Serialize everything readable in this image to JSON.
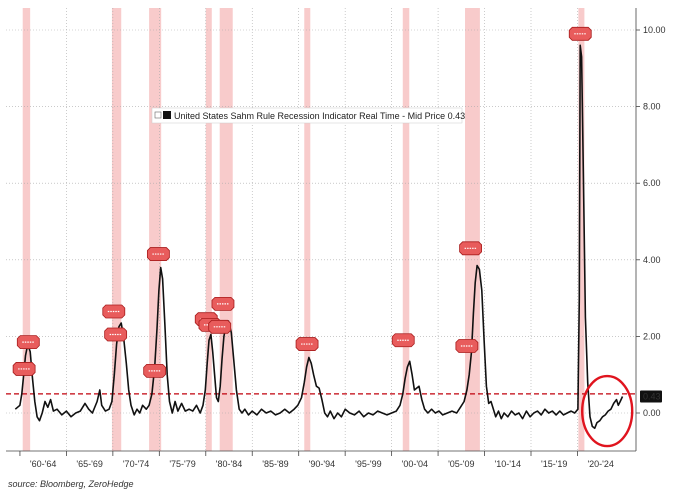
{
  "chart_data": {
    "type": "line",
    "legend_label": "United States Sahm Rule Recession Indicator Real Time - Mid Price 0.43",
    "legend_placement": "top-center",
    "grid": true,
    "x_range": [
      1960,
      2026
    ],
    "ylim": [
      -1,
      10.4
    ],
    "y_ticks": [
      0,
      2,
      4,
      6,
      8,
      10
    ],
    "y_tick_labels": [
      "0.00",
      "2.00",
      "4.00",
      "6.00",
      "8.00",
      "10.00"
    ],
    "x_tick_labels": [
      "'60-'64",
      "'65-'69",
      "'70-'74",
      "'75-'79",
      "'80-'84",
      "'85-'89",
      "'90-'94",
      "'95-'99",
      "'00-'04",
      "'05-'09",
      "'10-'14",
      "'15-'19",
      "'20-'24"
    ],
    "x_tick_positions": [
      1960,
      1965,
      1970,
      1975,
      1980,
      1985,
      1990,
      1995,
      2000,
      2005,
      2010,
      2015,
      2020
    ],
    "x_gridlines": [
      1965,
      1970,
      1975,
      1980,
      1985,
      1990,
      1995,
      2000,
      2005,
      2010,
      2015,
      2020
    ],
    "threshold": 0.5,
    "last_value": 0.43,
    "last_value_label": "0.43",
    "recessions": [
      [
        1960.3,
        1961.1
      ],
      [
        1969.9,
        1970.9
      ],
      [
        1973.9,
        1975.2
      ],
      [
        1980.0,
        1980.5
      ],
      [
        1981.5,
        1982.9
      ],
      [
        1990.6,
        1991.2
      ],
      [
        2001.2,
        2001.9
      ],
      [
        2007.9,
        2009.5
      ],
      [
        2020.1,
        2020.4
      ]
    ],
    "series": [
      {
        "values": [
          [
            1959.5,
            0.1
          ],
          [
            1960.0,
            0.2
          ],
          [
            1960.2,
            0.5
          ],
          [
            1960.4,
            1.0
          ],
          [
            1960.6,
            1.5
          ],
          [
            1960.85,
            1.8
          ],
          [
            1961.1,
            1.6
          ],
          [
            1961.35,
            0.9
          ],
          [
            1961.6,
            0.3
          ],
          [
            1961.85,
            -0.1
          ],
          [
            1962.1,
            -0.2
          ],
          [
            1962.4,
            0.0
          ],
          [
            1962.7,
            0.3
          ],
          [
            1963.0,
            0.15
          ],
          [
            1963.3,
            0.35
          ],
          [
            1963.6,
            0.05
          ],
          [
            1964.0,
            0.1
          ],
          [
            1964.5,
            -0.05
          ],
          [
            1965.0,
            0.05
          ],
          [
            1965.5,
            -0.1
          ],
          [
            1966.0,
            0.0
          ],
          [
            1966.5,
            0.05
          ],
          [
            1967.0,
            0.25
          ],
          [
            1967.4,
            0.1
          ],
          [
            1967.8,
            0.0
          ],
          [
            1968.3,
            0.3
          ],
          [
            1968.6,
            0.6
          ],
          [
            1968.8,
            0.2
          ],
          [
            1969.2,
            0.05
          ],
          [
            1969.6,
            0.1
          ],
          [
            1969.9,
            0.3
          ],
          [
            1970.15,
            1.0
          ],
          [
            1970.4,
            1.8
          ],
          [
            1970.65,
            2.25
          ],
          [
            1970.9,
            2.35
          ],
          [
            1971.15,
            2.0
          ],
          [
            1971.45,
            1.3
          ],
          [
            1971.7,
            0.6
          ],
          [
            1971.95,
            0.2
          ],
          [
            1972.3,
            -0.05
          ],
          [
            1972.6,
            0.1
          ],
          [
            1972.9,
            0.0
          ],
          [
            1973.2,
            0.2
          ],
          [
            1973.6,
            0.1
          ],
          [
            1973.9,
            0.2
          ],
          [
            1974.2,
            0.5
          ],
          [
            1974.5,
            1.2
          ],
          [
            1974.75,
            2.2
          ],
          [
            1974.95,
            3.2
          ],
          [
            1975.15,
            3.8
          ],
          [
            1975.35,
            3.5
          ],
          [
            1975.6,
            2.3
          ],
          [
            1975.85,
            1.0
          ],
          [
            1976.1,
            0.3
          ],
          [
            1976.4,
            0.0
          ],
          [
            1976.7,
            0.3
          ],
          [
            1977.0,
            0.05
          ],
          [
            1977.4,
            0.25
          ],
          [
            1977.8,
            0.05
          ],
          [
            1978.2,
            0.1
          ],
          [
            1978.6,
            0.05
          ],
          [
            1979.0,
            0.2
          ],
          [
            1979.4,
            0.0
          ],
          [
            1979.7,
            0.2
          ],
          [
            1979.95,
            0.6
          ],
          [
            1980.15,
            1.3
          ],
          [
            1980.35,
            1.9
          ],
          [
            1980.55,
            2.05
          ],
          [
            1980.75,
            1.6
          ],
          [
            1980.95,
            1.0
          ],
          [
            1981.15,
            0.4
          ],
          [
            1981.35,
            0.3
          ],
          [
            1981.55,
            0.7
          ],
          [
            1981.75,
            1.4
          ],
          [
            1981.95,
            2.0
          ],
          [
            1982.2,
            2.3
          ],
          [
            1982.45,
            2.4
          ],
          [
            1982.75,
            2.1
          ],
          [
            1983.0,
            1.4
          ],
          [
            1983.3,
            0.6
          ],
          [
            1983.6,
            0.1
          ],
          [
            1983.9,
            0.0
          ],
          [
            1984.2,
            0.1
          ],
          [
            1984.6,
            -0.05
          ],
          [
            1985.0,
            0.05
          ],
          [
            1985.5,
            -0.05
          ],
          [
            1986.0,
            0.1
          ],
          [
            1986.5,
            0.0
          ],
          [
            1987.0,
            0.05
          ],
          [
            1987.5,
            -0.05
          ],
          [
            1988.0,
            0.0
          ],
          [
            1988.5,
            0.1
          ],
          [
            1989.0,
            0.0
          ],
          [
            1989.5,
            0.1
          ],
          [
            1989.9,
            0.2
          ],
          [
            1990.3,
            0.4
          ],
          [
            1990.6,
            0.8
          ],
          [
            1990.85,
            1.2
          ],
          [
            1991.1,
            1.45
          ],
          [
            1991.35,
            1.3
          ],
          [
            1991.6,
            1.0
          ],
          [
            1991.9,
            0.7
          ],
          [
            1992.2,
            0.65
          ],
          [
            1992.5,
            0.35
          ],
          [
            1992.8,
            0.0
          ],
          [
            1993.1,
            -0.1
          ],
          [
            1993.4,
            0.05
          ],
          [
            1993.8,
            -0.15
          ],
          [
            1994.2,
            0.0
          ],
          [
            1994.6,
            -0.1
          ],
          [
            1995.0,
            0.1
          ],
          [
            1995.5,
            0.0
          ],
          [
            1996.0,
            -0.05
          ],
          [
            1996.5,
            0.05
          ],
          [
            1997.0,
            -0.1
          ],
          [
            1997.5,
            0.0
          ],
          [
            1998.0,
            -0.05
          ],
          [
            1998.5,
            0.05
          ],
          [
            1999.0,
            0.0
          ],
          [
            1999.5,
            -0.05
          ],
          [
            2000.0,
            0.0
          ],
          [
            2000.5,
            0.05
          ],
          [
            2000.9,
            0.2
          ],
          [
            2001.2,
            0.5
          ],
          [
            2001.45,
            0.9
          ],
          [
            2001.7,
            1.2
          ],
          [
            2001.95,
            1.35
          ],
          [
            2002.2,
            1.0
          ],
          [
            2002.45,
            0.6
          ],
          [
            2002.7,
            0.65
          ],
          [
            2002.95,
            0.7
          ],
          [
            2003.25,
            0.35
          ],
          [
            2003.55,
            0.1
          ],
          [
            2003.9,
            0.0
          ],
          [
            2004.3,
            0.1
          ],
          [
            2004.7,
            0.0
          ],
          [
            2005.1,
            0.05
          ],
          [
            2005.5,
            -0.05
          ],
          [
            2006.0,
            0.0
          ],
          [
            2006.5,
            0.05
          ],
          [
            2007.0,
            0.0
          ],
          [
            2007.4,
            0.15
          ],
          [
            2007.8,
            0.3
          ],
          [
            2008.1,
            0.6
          ],
          [
            2008.35,
            1.0
          ],
          [
            2008.6,
            1.6
          ],
          [
            2008.8,
            2.6
          ],
          [
            2009.0,
            3.4
          ],
          [
            2009.2,
            3.85
          ],
          [
            2009.45,
            3.75
          ],
          [
            2009.7,
            3.2
          ],
          [
            2009.95,
            1.9
          ],
          [
            2010.2,
            0.7
          ],
          [
            2010.45,
            0.25
          ],
          [
            2010.7,
            0.3
          ],
          [
            2010.95,
            0.1
          ],
          [
            2011.2,
            -0.1
          ],
          [
            2011.5,
            0.05
          ],
          [
            2011.8,
            -0.15
          ],
          [
            2012.1,
            0.0
          ],
          [
            2012.5,
            -0.1
          ],
          [
            2012.9,
            0.05
          ],
          [
            2013.3,
            -0.05
          ],
          [
            2013.7,
            0.0
          ],
          [
            2014.1,
            -0.15
          ],
          [
            2014.5,
            0.05
          ],
          [
            2014.9,
            -0.1
          ],
          [
            2015.3,
            0.0
          ],
          [
            2015.7,
            0.05
          ],
          [
            2016.1,
            -0.05
          ],
          [
            2016.5,
            0.1
          ],
          [
            2016.9,
            0.0
          ],
          [
            2017.3,
            0.05
          ],
          [
            2017.7,
            -0.05
          ],
          [
            2018.1,
            0.05
          ],
          [
            2018.5,
            -0.05
          ],
          [
            2018.9,
            0.0
          ],
          [
            2019.3,
            0.05
          ],
          [
            2019.7,
            0.0
          ],
          [
            2020.05,
            0.1
          ],
          [
            2020.2,
            3.0
          ],
          [
            2020.3,
            9.6
          ],
          [
            2020.45,
            9.3
          ],
          [
            2020.65,
            6.0
          ],
          [
            2020.85,
            2.5
          ],
          [
            2021.1,
            0.8
          ],
          [
            2021.35,
            -0.1
          ],
          [
            2021.6,
            -0.35
          ],
          [
            2021.85,
            -0.4
          ],
          [
            2022.1,
            -0.25
          ],
          [
            2022.4,
            -0.2
          ],
          [
            2022.7,
            -0.1
          ],
          [
            2023.0,
            -0.05
          ],
          [
            2023.3,
            0.05
          ],
          [
            2023.6,
            0.1
          ],
          [
            2023.9,
            0.25
          ],
          [
            2024.2,
            0.35
          ],
          [
            2024.4,
            0.2
          ],
          [
            2024.6,
            0.3
          ],
          [
            2024.85,
            0.43
          ]
        ]
      }
    ],
    "markers": [
      {
        "x": 1960.45,
        "y": 1.15
      },
      {
        "x": 1960.9,
        "y": 1.85
      },
      {
        "x": 1970.1,
        "y": 2.65
      },
      {
        "x": 1970.3,
        "y": 2.05
      },
      {
        "x": 1974.5,
        "y": 1.1
      },
      {
        "x": 1974.9,
        "y": 4.15
      },
      {
        "x": 1980.05,
        "y": 2.45
      },
      {
        "x": 1980.45,
        "y": 2.3
      },
      {
        "x": 1981.5,
        "y": 2.25
      },
      {
        "x": 1981.85,
        "y": 2.85
      },
      {
        "x": 1990.9,
        "y": 1.8
      },
      {
        "x": 2001.25,
        "y": 1.9
      },
      {
        "x": 2008.1,
        "y": 1.75
      },
      {
        "x": 2008.5,
        "y": 4.3
      },
      {
        "x": 2020.3,
        "y": 9.9
      }
    ],
    "annotation": "ellipse around latest readings"
  },
  "source": "source: Bloomberg, ZeroHedge",
  "colors": {
    "line": "#111111",
    "recession_band": "#f6b9b9",
    "threshold": "#c0000c",
    "marker_fill": "#e85c5c",
    "marker_stroke": "#a81c1c",
    "ellipse": "#e0141e",
    "grid": "#aaaaaa",
    "last_value_badge": "#111111"
  }
}
